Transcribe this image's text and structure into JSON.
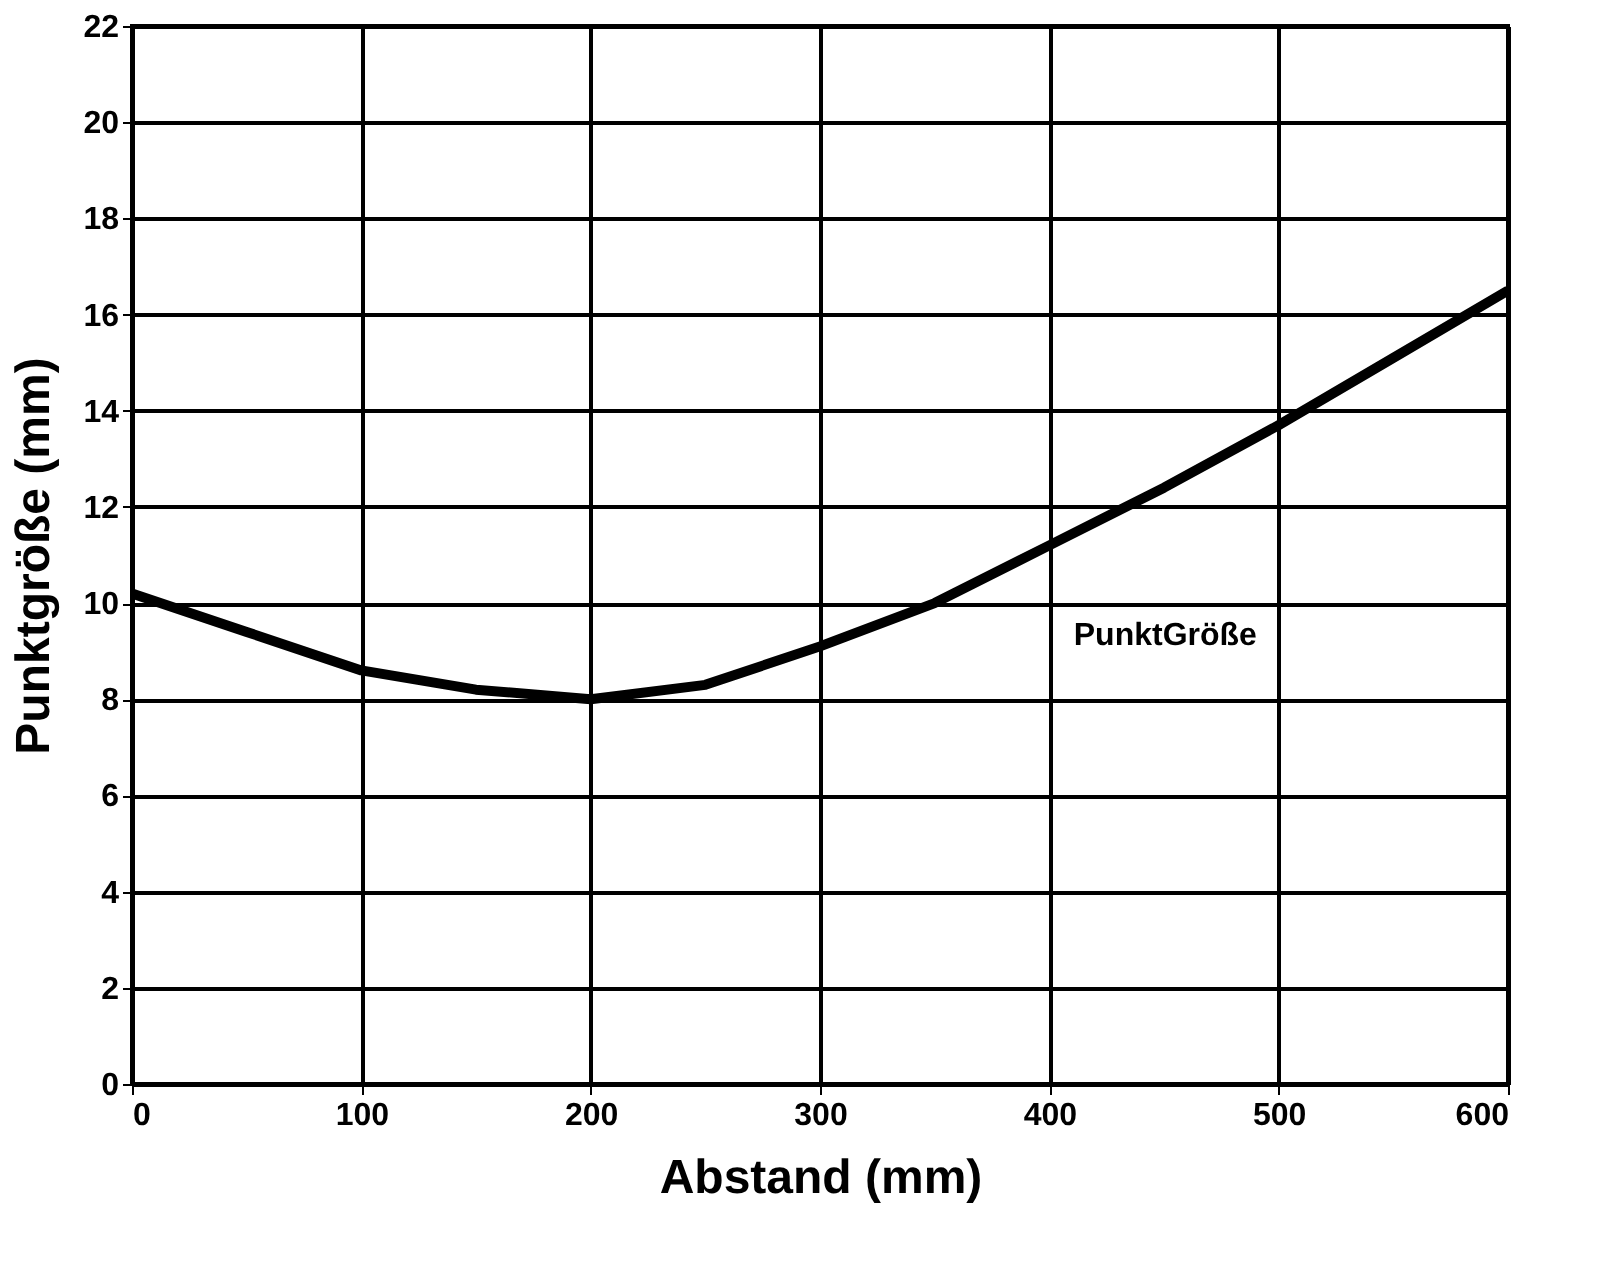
{
  "chart_data": {
    "type": "line",
    "xlabel": "Abstand (mm)",
    "ylabel": "Punktgröße (mm)",
    "x": [
      0,
      50,
      100,
      150,
      200,
      250,
      300,
      350,
      400,
      450,
      500,
      550,
      600
    ],
    "series": [
      {
        "name": "PunktGröße",
        "color": "#000000",
        "values": [
          10.2,
          9.4,
          8.6,
          8.2,
          8.0,
          8.3,
          9.1,
          10.0,
          11.2,
          12.4,
          13.7,
          15.1,
          16.5
        ]
      }
    ],
    "xlim": [
      0,
      600
    ],
    "xticks": [
      0,
      100,
      200,
      300,
      400,
      500,
      600
    ],
    "ylim": [
      0,
      22
    ],
    "yticks": [
      0,
      2,
      4,
      6,
      8,
      10,
      12,
      14,
      16,
      18,
      20,
      22
    ],
    "grid": true,
    "line_style": "solid",
    "marker": "none"
  }
}
